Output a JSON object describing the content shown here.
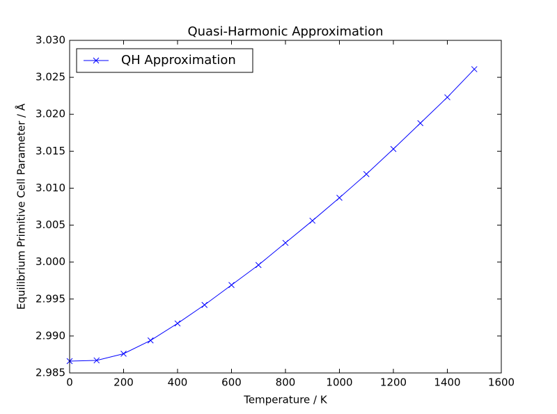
{
  "chart_data": {
    "type": "line",
    "title": "Quasi-Harmonic Approximation",
    "xlabel": "Temperature / K",
    "ylabel": "Equilibrium Primitive Cell Parameter / Å",
    "x": [
      0,
      100,
      200,
      300,
      400,
      500,
      600,
      700,
      800,
      900,
      1000,
      1100,
      1200,
      1300,
      1400,
      1500
    ],
    "series": [
      {
        "name": "QH Approximation",
        "color": "#0000ff",
        "marker": "x",
        "values": [
          2.9866,
          2.9867,
          2.9876,
          2.9894,
          2.9917,
          2.9942,
          2.9969,
          2.9996,
          3.0026,
          3.0056,
          3.0087,
          3.0119,
          3.0153,
          3.0188,
          3.0223,
          3.0261
        ]
      }
    ],
    "xlim": [
      0,
      1600
    ],
    "xticks": [
      0,
      200,
      400,
      600,
      800,
      1000,
      1200,
      1400,
      1600
    ],
    "ylim": [
      2.985,
      3.03
    ],
    "yticks": [
      {
        "value": 2.985,
        "label": "2.985"
      },
      {
        "value": 2.99,
        "label": "2.990"
      },
      {
        "value": 2.995,
        "label": "2.995"
      },
      {
        "value": 3.0,
        "label": "3.000"
      },
      {
        "value": 3.005,
        "label": "3.005"
      },
      {
        "value": 3.01,
        "label": "3.010"
      },
      {
        "value": 3.015,
        "label": "3.015"
      },
      {
        "value": 3.02,
        "label": "3.020"
      },
      {
        "value": 3.025,
        "label": "3.025"
      },
      {
        "value": 3.03,
        "label": "3.030"
      }
    ],
    "grid": false,
    "legend": "upper left"
  }
}
